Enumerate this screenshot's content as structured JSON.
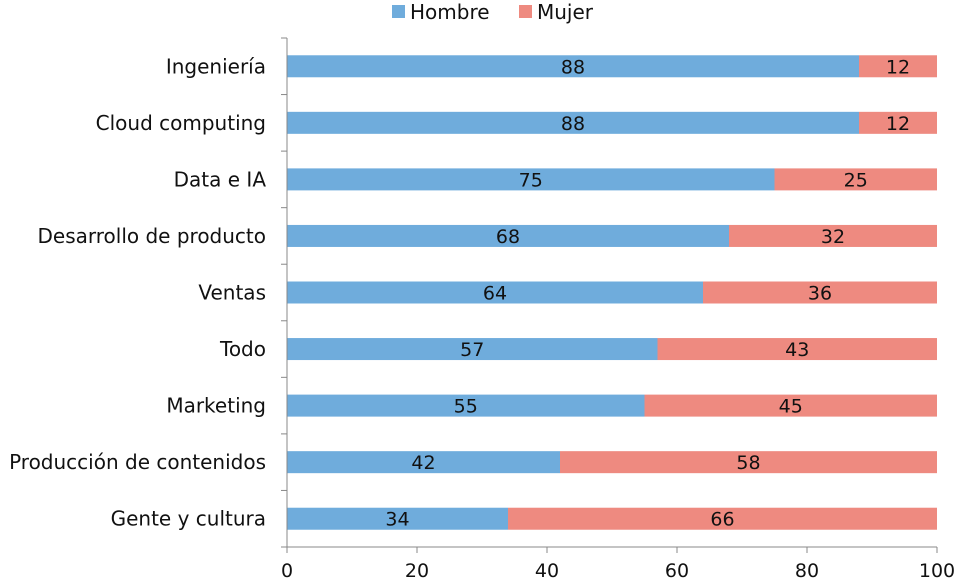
{
  "chart_data": {
    "type": "bar",
    "orientation": "horizontal",
    "stacked": true,
    "categories": [
      "Ingeniería",
      "Cloud computing",
      "Data e IA",
      "Desarrollo de producto",
      "Ventas",
      "Todo",
      "Marketing",
      "Producción de contenidos",
      "Gente y cultura"
    ],
    "series": [
      {
        "name": "Hombre",
        "color": "#6FACDC",
        "values": [
          88,
          88,
          75,
          68,
          64,
          57,
          55,
          42,
          34
        ]
      },
      {
        "name": "Mujer",
        "color": "#EE8A80",
        "values": [
          12,
          12,
          25,
          32,
          36,
          43,
          45,
          58,
          66
        ]
      }
    ],
    "xlim": [
      0,
      100
    ],
    "xticks": [
      0,
      20,
      40,
      60,
      80,
      100
    ],
    "legend_position": "top",
    "grid": false
  }
}
